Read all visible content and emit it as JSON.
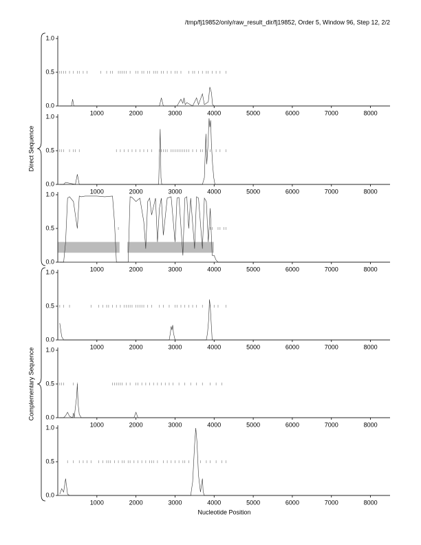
{
  "title": "/tmp/fj19852/only/raw_result_dir/fj19852, Order 5, Window 96, Step 12, 2/2",
  "xlabel": "Nucleotide Position",
  "group_labels": [
    "Direct Sequence",
    "Complementary Sequence"
  ],
  "chart_data": [
    {
      "type": "line",
      "xlim": [
        0,
        8500
      ],
      "ylim": [
        0,
        1
      ],
      "xticks": [
        1000,
        2000,
        3000,
        4000,
        5000,
        6000,
        7000,
        8000
      ],
      "yticks": [
        {
          "value": 0,
          "label": "0.0"
        },
        0.5,
        {
          "value": 1,
          "label": "1.0"
        }
      ],
      "series": [
        {
          "color": "#333333",
          "x": [
            50,
            350,
            380,
            410,
            2600,
            2650,
            2700,
            3050,
            3150,
            3200,
            3230,
            3260,
            3300,
            3450,
            3550,
            3600,
            3700,
            3750,
            3850,
            3890,
            3930,
            3960,
            4000,
            8500
          ],
          "values": [
            0,
            0,
            0.1,
            0,
            0,
            0.12,
            0,
            0,
            0.1,
            0.04,
            0.12,
            0.02,
            0.05,
            0,
            0.12,
            0.02,
            0.18,
            0.02,
            0.06,
            0.28,
            0.2,
            0.02,
            0,
            0
          ]
        }
      ],
      "stops": {
        "level": 0.5,
        "color": "#888888",
        "x": [
          50,
          100,
          150,
          200,
          300,
          400,
          500,
          550,
          650,
          750,
          1100,
          1250,
          1350,
          1400,
          1550,
          1600,
          1650,
          1700,
          1750,
          1850,
          2000,
          2050,
          2150,
          2200,
          2300,
          2350,
          2450,
          2500,
          2550,
          2650,
          2700,
          2800,
          2900,
          3000,
          3050,
          3150,
          3350,
          3450,
          3500,
          3600,
          3700,
          3800,
          3850,
          3950,
          4050,
          4150,
          4300
        ]
      }
    },
    {
      "type": "line",
      "xlim": [
        0,
        8500
      ],
      "ylim": [
        0,
        1
      ],
      "xticks": [
        1000,
        2000,
        3000,
        4000,
        5000,
        6000,
        7000,
        8000
      ],
      "yticks": [
        {
          "value": 0,
          "label": "0.0"
        },
        0.5,
        {
          "value": 1,
          "label": "1.0"
        }
      ],
      "series": [
        {
          "color": "#333333",
          "x": [
            50,
            150,
            200,
            450,
            500,
            550,
            2580,
            2610,
            2620,
            2640,
            2660,
            3700,
            3750,
            3790,
            3810,
            3840,
            3870,
            3890,
            3910,
            3930,
            3960,
            3990,
            4020,
            8500
          ],
          "values": [
            0,
            0,
            0.03,
            0,
            0.15,
            0,
            0,
            0.6,
            0.82,
            0.1,
            0,
            0,
            0.1,
            0.75,
            0.3,
            0.55,
            0.98,
            0.85,
            0.95,
            0.6,
            0.3,
            0.1,
            0,
            0
          ]
        }
      ],
      "stops": {
        "level": 0.5,
        "color": "#888888",
        "x": [
          50,
          100,
          150,
          300,
          400,
          450,
          550,
          1500,
          1600,
          1700,
          1800,
          1900,
          2000,
          2100,
          2200,
          2300,
          2400,
          2600,
          2650,
          2700,
          2750,
          2800,
          2900,
          2950,
          3000,
          3050,
          3100,
          3150,
          3200,
          3250,
          3300,
          3350,
          3450,
          3550,
          3650,
          3700,
          3800,
          3900,
          4050,
          4150,
          4300
        ]
      }
    },
    {
      "type": "line",
      "xlim": [
        0,
        8500
      ],
      "ylim": [
        0,
        1
      ],
      "xticks": [
        1000,
        2000,
        3000,
        4000,
        5000,
        6000,
        7000,
        8000
      ],
      "yticks": [
        {
          "value": 0,
          "label": "0.0"
        },
        0.5,
        {
          "value": 1,
          "label": "1.0"
        }
      ],
      "series": [
        {
          "color": "#333333",
          "x": [
            50,
            150,
            200,
            250,
            300,
            400,
            500,
            550,
            600,
            700,
            1000,
            1200,
            1400,
            1450,
            1500,
            1550,
            1800,
            1850,
            1900,
            2000,
            2100,
            2200,
            2250,
            2300,
            2350,
            2400,
            2500,
            2550,
            2600,
            2650,
            2700,
            2800,
            2900,
            3000,
            3050,
            3100,
            3200,
            3250,
            3300,
            3350,
            3400,
            3500,
            3550,
            3600,
            3700,
            3750,
            3800,
            3850,
            3900,
            3950,
            4000,
            4050,
            4100,
            8500
          ],
          "values": [
            0,
            0,
            0.3,
            0.95,
            0.97,
            0.9,
            0.5,
            0.98,
            0.97,
            0.98,
            0.98,
            0.97,
            0.98,
            0.6,
            0,
            0,
            0,
            0.97,
            0.96,
            0.9,
            0.95,
            0.6,
            0.2,
            0.9,
            0.95,
            0.7,
            0.95,
            0.3,
            0.8,
            0.95,
            0.4,
            0.95,
            0.97,
            0.3,
            0.95,
            0.96,
            0.1,
            0.95,
            0.97,
            0.5,
            0.95,
            0.2,
            0.97,
            0.95,
            0.2,
            0.95,
            0.9,
            0.3,
            0.8,
            0.1,
            0.1,
            0.03,
            0,
            0
          ]
        }
      ],
      "stops": {
        "level": 0.5,
        "color": "#888888",
        "x": [
          1550,
          3900,
          3950,
          4100,
          4150,
          4250,
          4300
        ]
      },
      "bands": {
        "color": "#bbbbbb",
        "range": [
          0.14,
          0.3
        ],
        "spans": [
          [
            0,
            1580
          ],
          [
            1780,
            3990
          ]
        ]
      }
    },
    {
      "type": "line",
      "xlim": [
        0,
        8500
      ],
      "ylim": [
        0,
        1
      ],
      "xticks": [
        1000,
        2000,
        3000,
        4000,
        5000,
        6000,
        7000,
        8000
      ],
      "yticks": [
        {
          "value": 0,
          "label": "0.0"
        },
        0.5,
        {
          "value": 1,
          "label": "1.0"
        }
      ],
      "series": [
        {
          "color": "#333333",
          "x": [
            50,
            100,
            150,
            2850,
            2880,
            2900,
            2920,
            2940,
            2960,
            2980,
            3000,
            3800,
            3830,
            3860,
            3880,
            3900,
            3950,
            8500
          ],
          "values": [
            0.25,
            0.05,
            0,
            0,
            0.1,
            0.2,
            0.15,
            0.22,
            0.1,
            0.05,
            0,
            0,
            0.1,
            0.3,
            0.6,
            0.5,
            0,
            0
          ]
        }
      ],
      "stops": {
        "level": 0.5,
        "color": "#888888",
        "x": [
          50,
          150,
          300,
          850,
          1050,
          1150,
          1250,
          1300,
          1400,
          1500,
          1600,
          1700,
          1750,
          1800,
          1850,
          1900,
          2000,
          2050,
          2100,
          2150,
          2200,
          2300,
          2400,
          2600,
          2700,
          2850,
          3000,
          3050,
          3150,
          3250,
          3350,
          3450,
          3550,
          3700,
          3900,
          4000,
          4100,
          4300
        ]
      }
    },
    {
      "type": "line",
      "xlim": [
        0,
        8500
      ],
      "ylim": [
        0,
        1
      ],
      "xticks": [
        1000,
        2000,
        3000,
        4000,
        5000,
        6000,
        7000,
        8000
      ],
      "yticks": [
        {
          "value": 0,
          "label": "0.0"
        },
        0.5,
        {
          "value": 1,
          "label": "1.0"
        }
      ],
      "series": [
        {
          "color": "#333333",
          "x": [
            50,
            150,
            200,
            250,
            300,
            380,
            400,
            420,
            480,
            500,
            520,
            550,
            600,
            1950,
            2000,
            2050,
            8500
          ],
          "values": [
            0,
            0,
            0.03,
            0.08,
            0.02,
            0,
            0.07,
            0,
            0.3,
            0.5,
            0.2,
            0.05,
            0,
            0,
            0.08,
            0,
            0
          ]
        }
      ],
      "stops": {
        "level": 0.5,
        "color": "#888888",
        "x": [
          50,
          100,
          150,
          400,
          500,
          1400,
          1450,
          1500,
          1550,
          1600,
          1650,
          1750,
          1850,
          2000,
          2050,
          2150,
          2250,
          2350,
          2450,
          2550,
          2650,
          2750,
          2850,
          2950,
          3100,
          3250,
          3400,
          3550,
          3700,
          3900,
          4050,
          4200
        ]
      }
    },
    {
      "type": "line",
      "xlim": [
        0,
        8500
      ],
      "ylim": [
        0,
        1
      ],
      "xticks": [
        1000,
        2000,
        3000,
        4000,
        5000,
        6000,
        7000,
        8000
      ],
      "yticks": [
        {
          "value": 0,
          "label": "0.0"
        },
        0.5,
        {
          "value": 1,
          "label": "1.0"
        }
      ],
      "series": [
        {
          "color": "#333333",
          "x": [
            50,
            100,
            150,
            200,
            250,
            300,
            2750,
            3400,
            3450,
            3500,
            3530,
            3560,
            3600,
            3650,
            3700,
            3720,
            3750,
            8500
          ],
          "values": [
            0.02,
            0.1,
            0.05,
            0.25,
            0.02,
            0,
            0,
            0,
            0.2,
            0.75,
            1.0,
            0.8,
            0.3,
            0.05,
            0.25,
            0.05,
            0,
            0
          ]
        }
      ],
      "stops": {
        "level": 0.5,
        "color": "#888888",
        "x": [
          250,
          400,
          550,
          650,
          750,
          850,
          1050,
          1150,
          1250,
          1300,
          1350,
          1450,
          1550,
          1650,
          1700,
          1800,
          1850,
          1950,
          2050,
          2150,
          2250,
          2350,
          2400,
          2450,
          2550,
          2700,
          2800,
          2900,
          3000,
          3100,
          3200,
          3250,
          3350,
          3650,
          3800,
          3900,
          4050,
          4200,
          4300
        ]
      }
    }
  ]
}
